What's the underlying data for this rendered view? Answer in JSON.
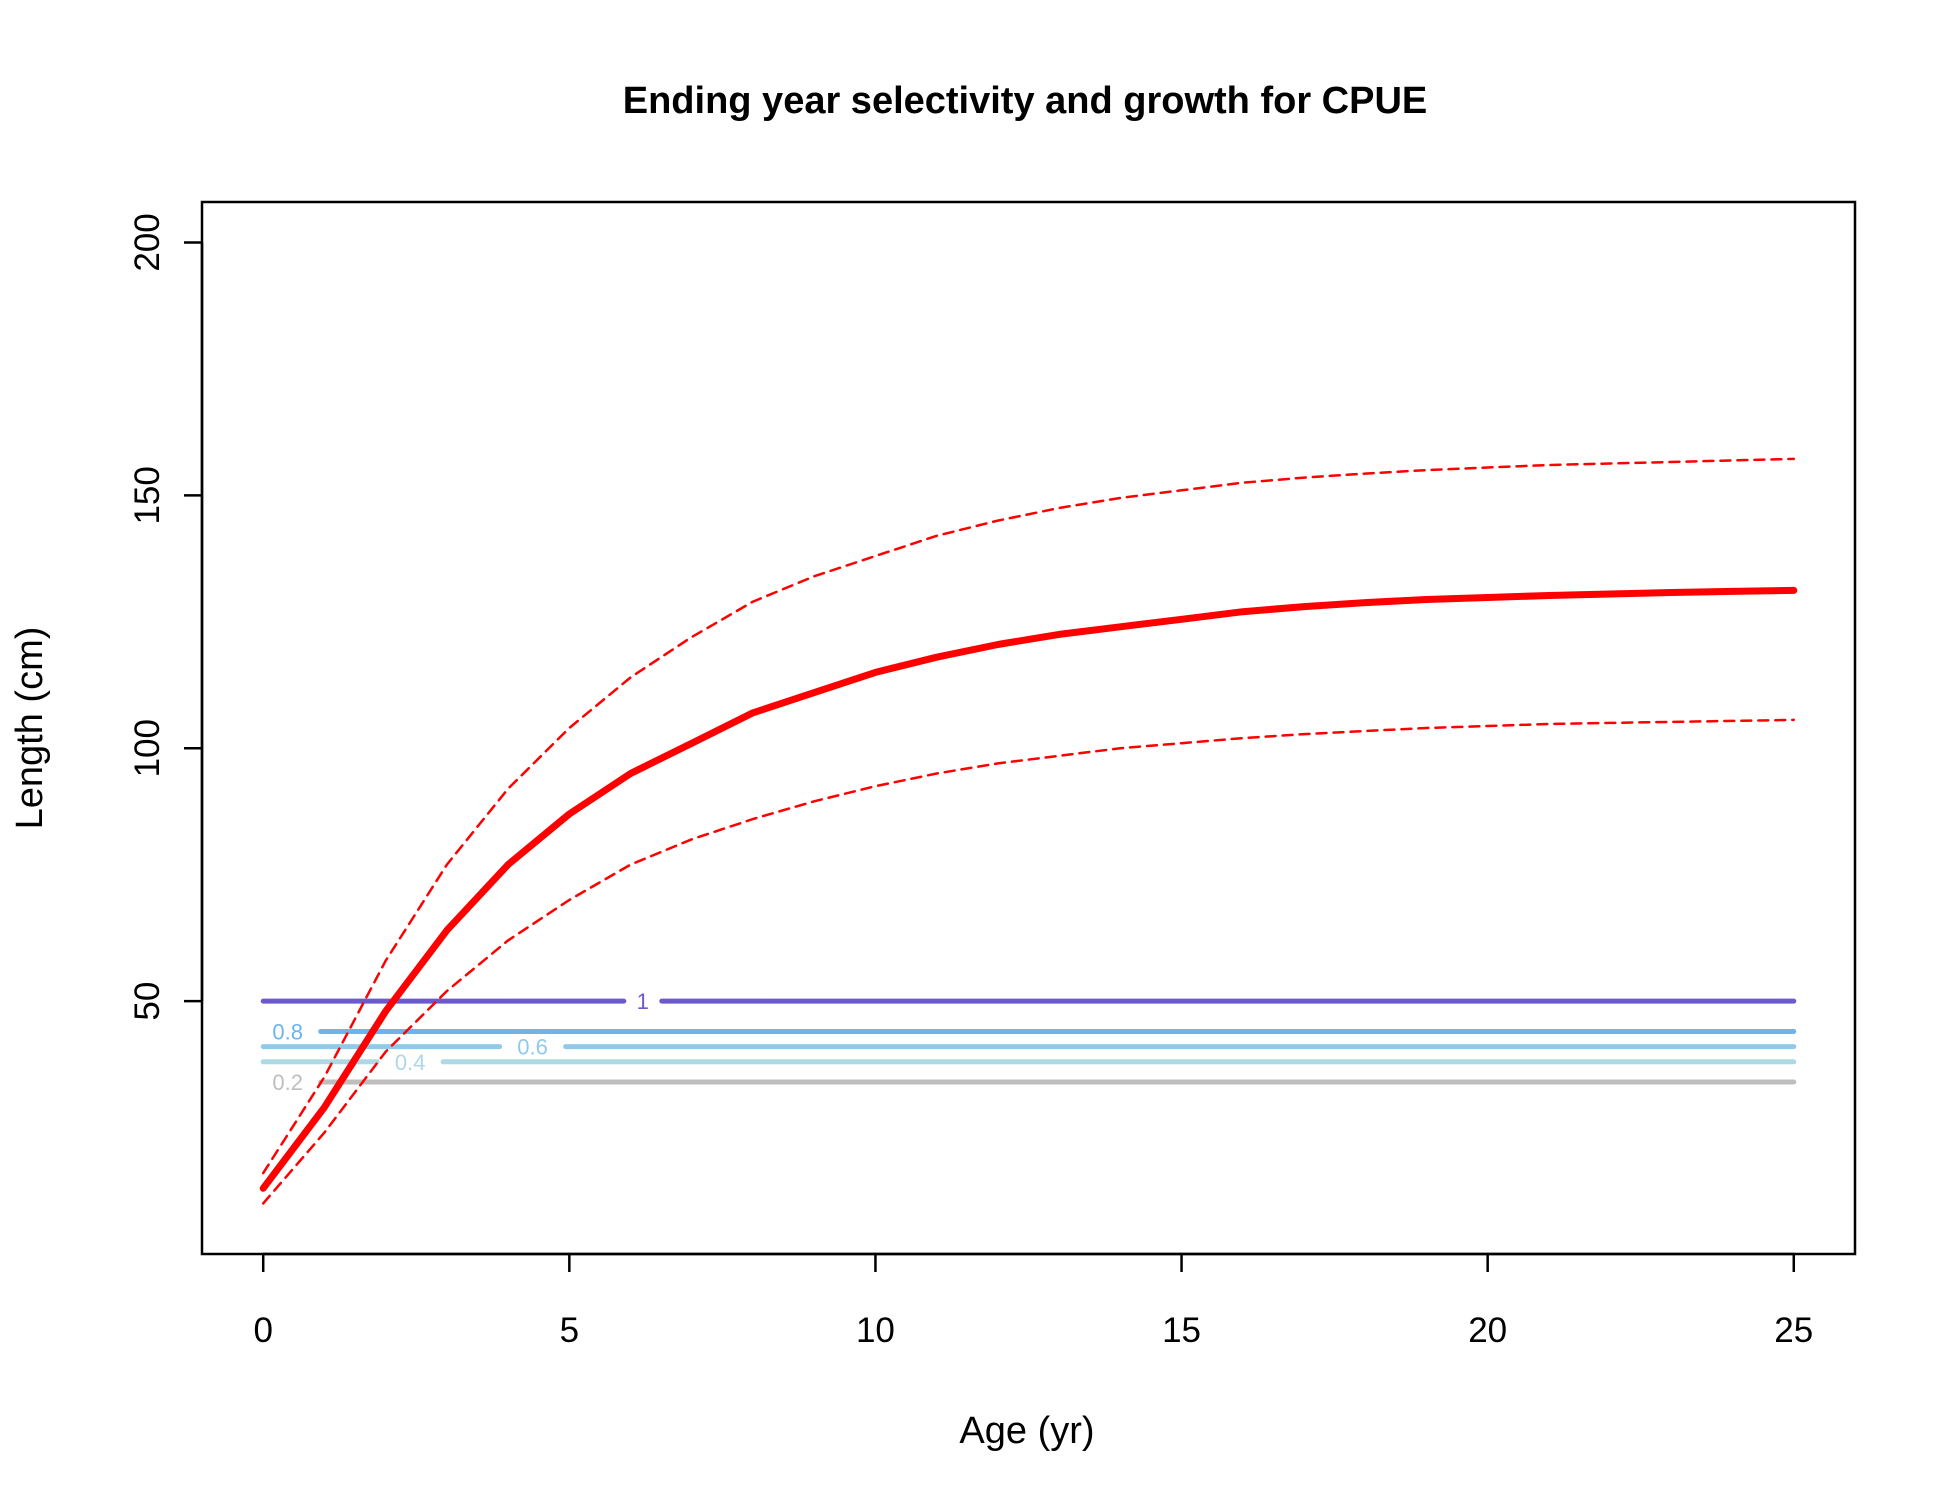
{
  "chart_data": {
    "type": "line",
    "title": "Ending year selectivity and growth for CPUE",
    "xlabel": "Age (yr)",
    "ylabel": "Length (cm)",
    "xlim": [
      -1,
      26
    ],
    "ylim": [
      0,
      208
    ],
    "xticks": [
      0,
      5,
      10,
      15,
      20,
      25
    ],
    "yticks": [
      50,
      100,
      150,
      200
    ],
    "grid": false,
    "series": [
      {
        "role": "mean-growth",
        "color": "#ff0000",
        "style": "solid",
        "x": [
          0,
          1,
          2,
          3,
          4,
          5,
          6,
          7,
          8,
          9,
          10,
          11,
          12,
          13,
          14,
          15,
          16,
          17,
          18,
          19,
          20,
          21,
          22,
          23,
          24,
          25
        ],
        "y": [
          13,
          29,
          48,
          64,
          77,
          87,
          95,
          101,
          107,
          111,
          115,
          118,
          120.5,
          122.5,
          124,
          125.5,
          127,
          128,
          128.8,
          129.4,
          129.8,
          130.2,
          130.5,
          130.8,
          131,
          131.2
        ]
      },
      {
        "role": "upper-interval",
        "color": "#ff0000",
        "style": "dashed",
        "x": [
          0,
          1,
          2,
          3,
          4,
          5,
          6,
          7,
          8,
          9,
          10,
          11,
          12,
          13,
          14,
          15,
          16,
          17,
          18,
          19,
          20,
          21,
          22,
          23,
          24,
          25
        ],
        "y": [
          16,
          35,
          58,
          77,
          92,
          104,
          114,
          122,
          129,
          134,
          138,
          142,
          145,
          147.5,
          149.5,
          151,
          152.5,
          153.5,
          154.3,
          155,
          155.5,
          156,
          156.3,
          156.6,
          156.9,
          157.2
        ]
      },
      {
        "role": "lower-interval",
        "color": "#ff0000",
        "style": "dashed",
        "x": [
          0,
          1,
          2,
          3,
          4,
          5,
          6,
          7,
          8,
          9,
          10,
          11,
          12,
          13,
          14,
          15,
          16,
          17,
          18,
          19,
          20,
          21,
          22,
          23,
          24,
          25
        ],
        "y": [
          10,
          24,
          40,
          52,
          62,
          70,
          77,
          82,
          86,
          89.5,
          92.5,
          95,
          97,
          98.5,
          100,
          101,
          102,
          102.8,
          103.4,
          104,
          104.4,
          104.8,
          105,
          105.2,
          105.4,
          105.6
        ]
      }
    ],
    "contours": [
      {
        "level": 1,
        "label": "1",
        "y": 50,
        "color": "#6a5acd",
        "label_x": 6.2
      },
      {
        "level": 0.8,
        "label": "0.8",
        "y": 44,
        "color": "#6cb4ee",
        "label_x": 0.4
      },
      {
        "level": 0.6,
        "label": "0.6",
        "y": 41,
        "color": "#8fcbe8",
        "label_x": 4.4
      },
      {
        "level": 0.4,
        "label": "0.4",
        "y": 38,
        "color": "#add8e6",
        "label_x": 2.4
      },
      {
        "level": 0.2,
        "label": "0.2",
        "y": 34,
        "color": "#bebebe",
        "label_x": 0.4
      }
    ]
  }
}
